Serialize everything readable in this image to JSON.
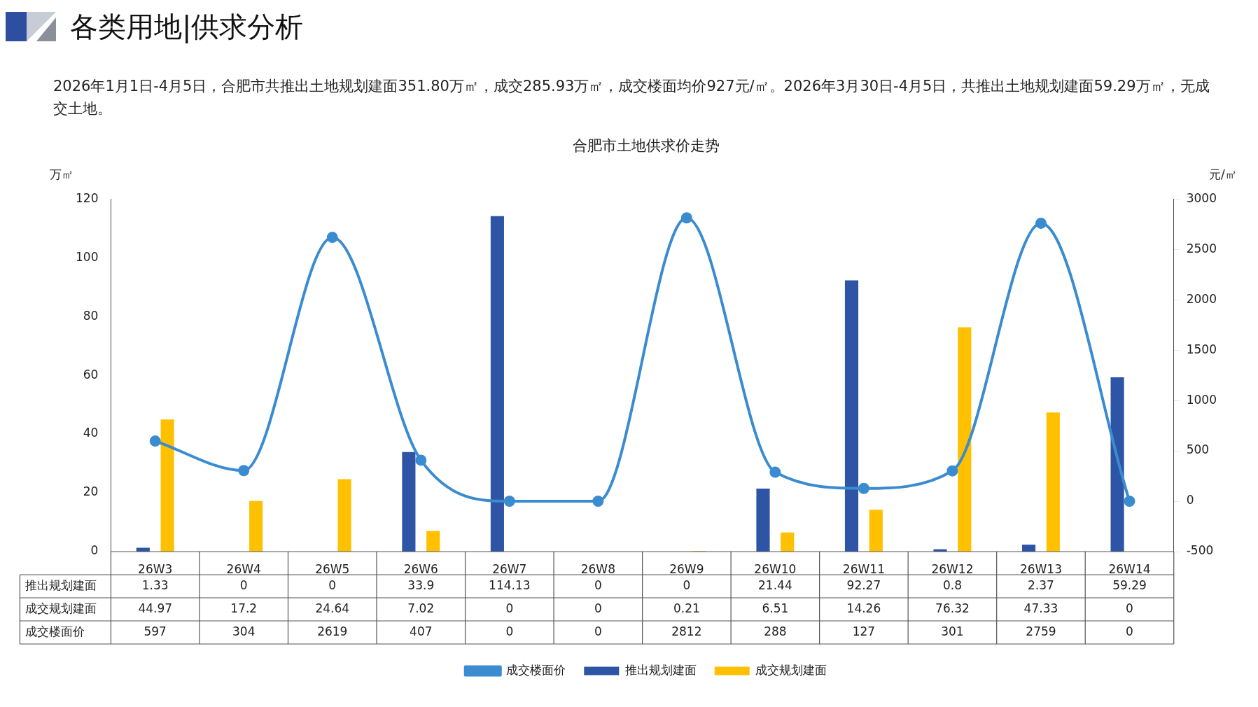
{
  "chart_data": {
    "type": "bar",
    "title": "合肥市土地供求价走势",
    "ylabel": "万㎡",
    "y2label": "元/㎡",
    "annotations": [
      "各类用地|供求分析",
      "2026年1月1日-4月5日，合肥市共推出土地规划建面351.80万㎡，成交285.93万㎡，成交楼面均价927元/㎡。2026年3月30日-4月5日，共推出土地规划建面59.29万㎡，无成交土地。"
    ],
    "categories": [
      "26W3",
      "26W4",
      "26W5",
      "26W6",
      "26W7",
      "26W8",
      "26W9",
      "26W10",
      "26W11",
      "26W12",
      "26W13",
      "26W14"
    ],
    "series": [
      {
        "name": "推出规划建面",
        "color": "#2e55a5",
        "values": [
          1.33,
          0,
          0,
          33.9,
          114.13,
          0,
          0,
          21.44,
          92.27,
          0.8,
          2.37,
          59.29
        ]
      },
      {
        "name": "成交规划建面",
        "color": "#ffc000",
        "values": [
          44.97,
          17.2,
          24.64,
          7.02,
          0,
          0,
          0.21,
          6.51,
          14.26,
          76.32,
          47.33,
          0
        ]
      },
      {
        "name": "成交楼面价",
        "type": "line",
        "axis": "y2",
        "color": "#3a8bd0",
        "values": [
          597,
          304,
          2619,
          407,
          0,
          0,
          2812,
          288,
          127,
          301,
          2759,
          0
        ]
      }
    ],
    "ylim": [
      0,
      120
    ],
    "yticks": [
      0,
      20,
      40,
      60,
      80,
      100,
      120
    ],
    "y2lim": [
      -500,
      3000
    ],
    "y2ticks": [
      -500,
      0,
      500,
      1000,
      1500,
      2000,
      2500,
      3000
    ],
    "grid": false,
    "legend": "bottom",
    "marker": "circle",
    "line_style": "solid",
    "data_labels": true
  }
}
